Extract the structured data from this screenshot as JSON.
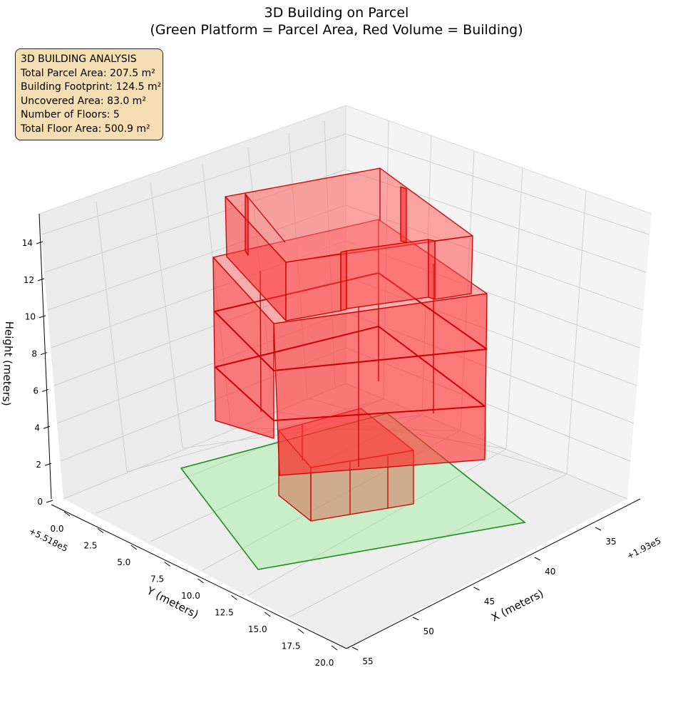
{
  "chart_data": {
    "type": "3d-volume",
    "title_line1": "3D Building on Parcel",
    "title_line2": "(Green Platform = Parcel Area, Red Volume = Building)",
    "xlabel": "X (meters)",
    "ylabel": "Y (meters)",
    "zlabel": "Height (meters)",
    "x_offset_label": "+1.93e5",
    "y_offset_label": "+5.518e5",
    "x_ticks": [
      "35",
      "40",
      "45",
      "50",
      "55"
    ],
    "y_ticks": [
      "0.0",
      "2.5",
      "5.0",
      "7.5",
      "10.0",
      "12.5",
      "15.0",
      "17.5",
      "20.0"
    ],
    "z_ticks": [
      "0",
      "2",
      "4",
      "6",
      "8",
      "10",
      "12",
      "14"
    ],
    "grid": true,
    "colors": {
      "parcel_fill": "#90ee90",
      "parcel_edge": "#228b22",
      "building_fill": "#ff0000",
      "building_edge": "#cc0000",
      "info_bg": "#f5deb3"
    },
    "info_box": {
      "heading": "3D BUILDING ANALYSIS",
      "lines": [
        "Total Parcel Area: 207.5 m²",
        "Building Footprint: 124.5 m²",
        "Uncovered Area: 83.0 m²",
        "Number of Floors: 5",
        "Total Floor Area: 500.9 m²"
      ]
    }
  }
}
